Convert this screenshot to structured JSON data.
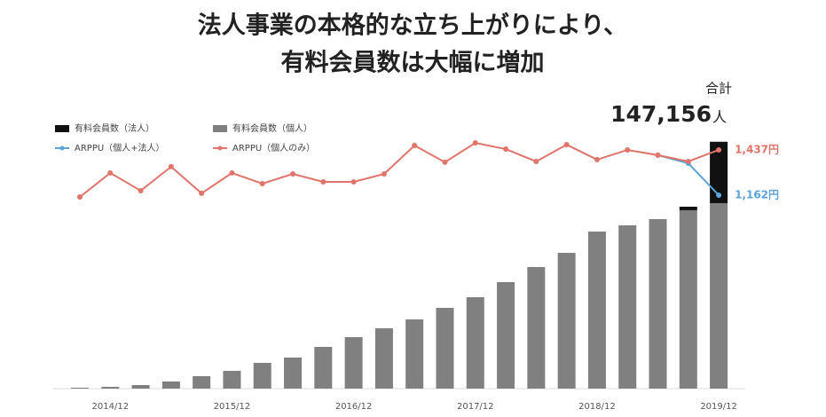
{
  "chart_data": {
    "type": "bar",
    "title": "法人事業の本格的な立ち上がりにより、",
    "subtitle": "有料会員数は大幅に増加",
    "categories": [
      null,
      "2014/12",
      null,
      null,
      null,
      "2015/12",
      null,
      null,
      null,
      "2016/12",
      null,
      null,
      null,
      "2017/12",
      null,
      null,
      null,
      "2018/12",
      null,
      null,
      null,
      "2019/12"
    ],
    "stacked": true,
    "ylim": [
      0,
      150000
    ],
    "y2lim": [
      1000,
      1500
    ],
    "series": [
      {
        "name": "有料会員数（個人）",
        "type": "bar",
        "color": "#808080",
        "values": [
          529,
          1058,
          2116,
          4232,
          7406,
          10580,
          15341,
          18515,
          24863,
          30682,
          35972,
          41262,
          48139,
          54487,
          63480,
          72473,
          80937,
          93633,
          97336,
          101039,
          106329,
          110561
        ]
      },
      {
        "name": "有料会員数（法人）",
        "type": "bar",
        "color": "#111111",
        "values": [
          0,
          0,
          0,
          0,
          0,
          0,
          0,
          0,
          0,
          0,
          0,
          0,
          0,
          0,
          0,
          0,
          0,
          0,
          0,
          0,
          2116,
          36595
        ]
      },
      {
        "name": "ARPPU（個人+法人）",
        "type": "line",
        "axis": "y2",
        "color": "#5ba3d9",
        "values": [
          null,
          null,
          null,
          null,
          null,
          null,
          null,
          null,
          null,
          null,
          null,
          null,
          null,
          null,
          null,
          null,
          null,
          null,
          null,
          1405,
          1356,
          1162
        ],
        "value_labels": [
          null,
          null,
          null,
          null,
          null,
          null,
          null,
          null,
          null,
          null,
          null,
          null,
          null,
          null,
          null,
          null,
          null,
          null,
          null,
          null,
          null,
          "1,162円"
        ]
      },
      {
        "name": "ARPPU（個人のみ）",
        "type": "line",
        "axis": "y2",
        "color": "#e0736a",
        "values": [
          1151,
          1297,
          1189,
          1335,
          1173,
          1297,
          1232,
          1291,
          1243,
          1243,
          1291,
          1464,
          1362,
          1480,
          1442,
          1367,
          1469,
          1378,
          1437,
          1405,
          1367,
          1437
        ],
        "value_labels": [
          null,
          null,
          null,
          null,
          null,
          null,
          null,
          null,
          null,
          null,
          null,
          null,
          null,
          null,
          null,
          null,
          null,
          null,
          null,
          null,
          null,
          "1,437円"
        ]
      }
    ],
    "legend_order": [
      1,
      0,
      2,
      3
    ],
    "total": {
      "title": "合計",
      "label": "147,156",
      "unit": "人"
    }
  }
}
